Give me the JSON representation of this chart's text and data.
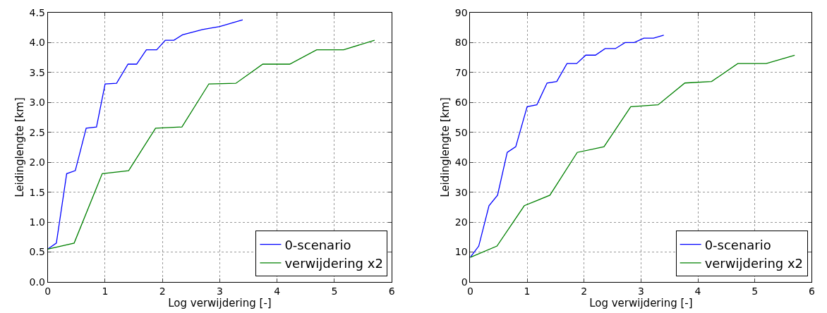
{
  "chart_data": [
    {
      "type": "line",
      "xlabel": "Log verwijdering [-]",
      "ylabel": "Leidinglengte [km]",
      "xlim": [
        0,
        6
      ],
      "xticks": [
        0,
        1,
        2,
        3,
        4,
        5,
        6
      ],
      "ylim": [
        0,
        4.5
      ],
      "yticks": [
        {
          "value": 0,
          "label": "0.0"
        },
        0.5,
        {
          "value": 1,
          "label": "1.0"
        },
        1.5,
        {
          "value": 2,
          "label": "2.0"
        },
        2.5,
        {
          "value": 3,
          "label": "3.0"
        },
        3.5,
        {
          "value": 4,
          "label": "4.0"
        },
        4.5
      ],
      "grid": true,
      "legend": "bottom right",
      "line_style": "solid",
      "marker": "none",
      "series": [
        {
          "name": "0-scenario",
          "color": "#0000ff",
          "x": [
            0,
            0.15,
            0.33,
            0.48,
            0.67,
            0.85,
            1.0,
            1.2,
            1.4,
            1.55,
            1.72,
            1.9,
            2.05,
            2.2,
            2.35,
            2.7,
            3.0,
            3.4
          ],
          "values": [
            0.55,
            0.65,
            1.81,
            1.86,
            2.57,
            2.59,
            3.31,
            3.32,
            3.64,
            3.64,
            3.88,
            3.88,
            4.04,
            4.04,
            4.13,
            4.22,
            4.27,
            4.38
          ]
        },
        {
          "name": "verwijdering x2",
          "color": "#008000",
          "x": [
            0,
            0.46,
            0.95,
            1.41,
            1.88,
            2.34,
            2.81,
            3.28,
            3.75,
            4.22,
            4.69,
            5.16,
            5.7
          ],
          "values": [
            0.55,
            0.65,
            1.81,
            1.86,
            2.57,
            2.59,
            3.31,
            3.32,
            3.64,
            3.64,
            3.88,
            3.88,
            4.04
          ]
        }
      ]
    },
    {
      "type": "line",
      "xlabel": "Log verwijdering [-]",
      "ylabel": "Leidinglengte [km]",
      "xlim": [
        0,
        6
      ],
      "xticks": [
        0,
        1,
        2,
        3,
        4,
        5,
        6
      ],
      "ylim": [
        0,
        90
      ],
      "yticks": [
        0,
        10,
        20,
        30,
        40,
        50,
        60,
        70,
        80,
        90
      ],
      "grid": true,
      "legend": "bottom right",
      "line_style": "solid",
      "marker": "none",
      "series": [
        {
          "name": "0-scenario",
          "color": "#0000ff",
          "x": [
            0,
            0.15,
            0.33,
            0.48,
            0.65,
            0.8,
            1.0,
            1.17,
            1.35,
            1.52,
            1.7,
            1.87,
            2.03,
            2.2,
            2.37,
            2.55,
            2.72,
            2.88,
            3.05,
            3.22,
            3.4
          ],
          "values": [
            8.2,
            12,
            25.5,
            29,
            43.3,
            45.2,
            58.6,
            59.2,
            66.5,
            67,
            73,
            73,
            75.8,
            75.8,
            78,
            78,
            80,
            80,
            81.5,
            81.5,
            82.5
          ]
        },
        {
          "name": "verwijdering x2",
          "color": "#008000",
          "x": [
            0,
            0.47,
            0.95,
            1.4,
            1.88,
            2.35,
            2.82,
            3.3,
            3.77,
            4.24,
            4.7,
            5.2,
            5.7
          ],
          "values": [
            8.2,
            12,
            25.5,
            29,
            43.3,
            45.2,
            58.6,
            59.2,
            66.5,
            67,
            73,
            73,
            75.8
          ]
        }
      ]
    }
  ]
}
